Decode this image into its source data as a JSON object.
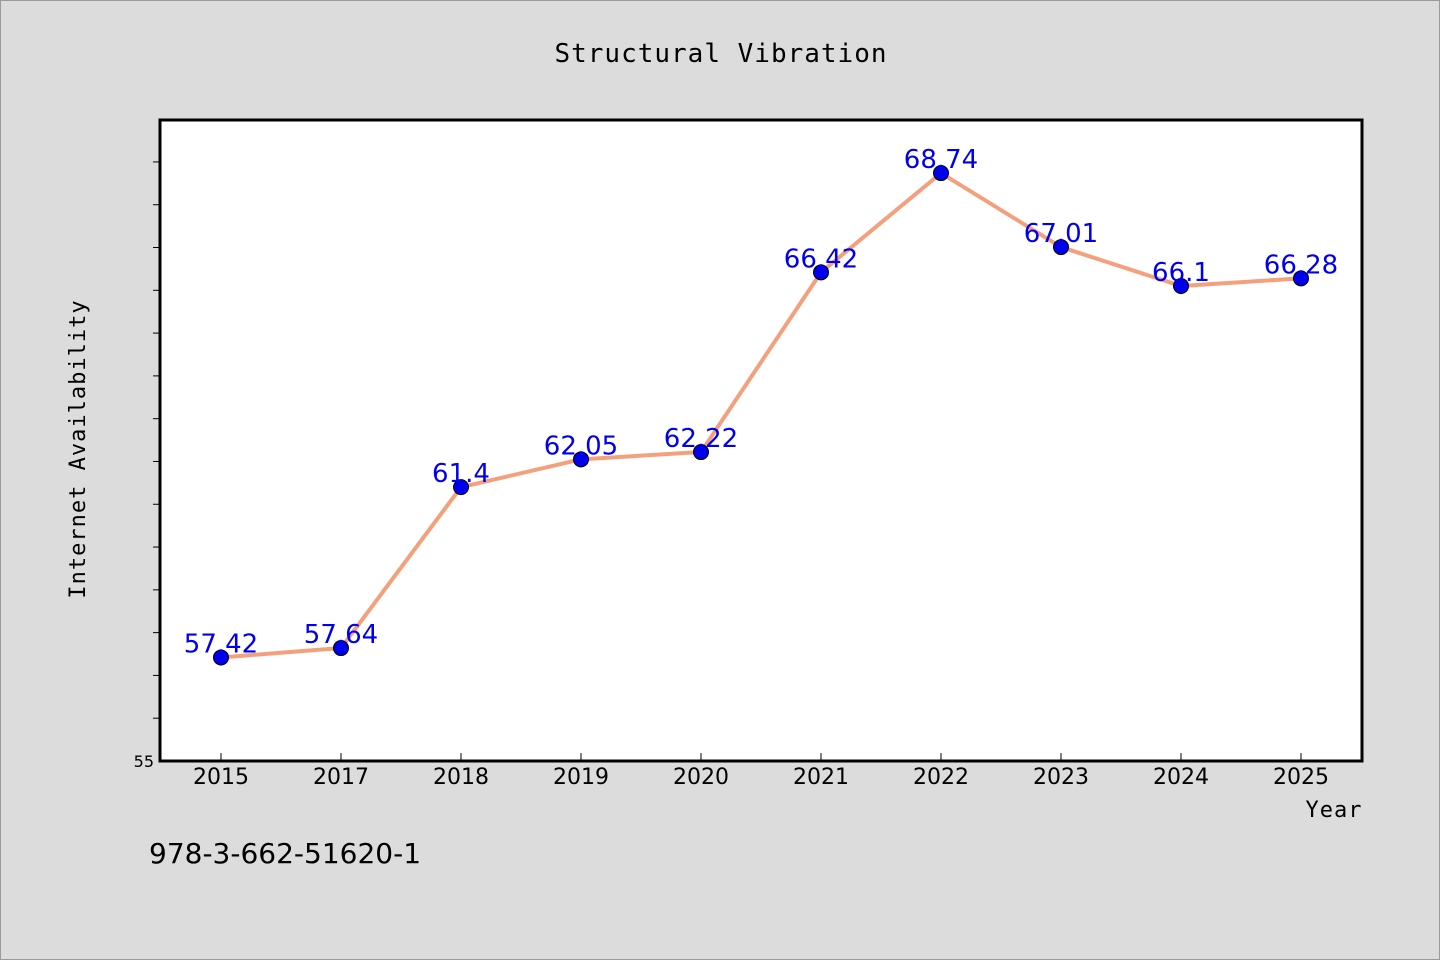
{
  "chart_data": {
    "type": "line",
    "title": "Structural Vibration",
    "xlabel": "Year",
    "ylabel": "Internet Availability",
    "categories": [
      "2015",
      "2017",
      "2018",
      "2019",
      "2020",
      "2021",
      "2022",
      "2023",
      "2024",
      "2025"
    ],
    "series": [
      {
        "values": [
          57.42,
          57.64,
          61.4,
          62.05,
          62.22,
          66.42,
          68.74,
          67.01,
          66.1,
          66.28
        ],
        "labels": [
          "57.42",
          "57.64",
          "61.4",
          "62.05",
          "62.22",
          "66.42",
          "68.74",
          "67.01",
          "66.1",
          "66.28"
        ],
        "line_color": "#f4a07c",
        "marker_color": "#0000ee"
      }
    ],
    "ylim": [
      55,
      69.98
    ],
    "y_tick_labels": [
      "55"
    ],
    "y_minor_tick_step": 1,
    "grid": false,
    "legend": "none"
  },
  "footer": {
    "isbn": "978-3-662-51620-1"
  },
  "colors": {
    "background": "#dcdcdc",
    "plot_area": "#ffffff"
  }
}
